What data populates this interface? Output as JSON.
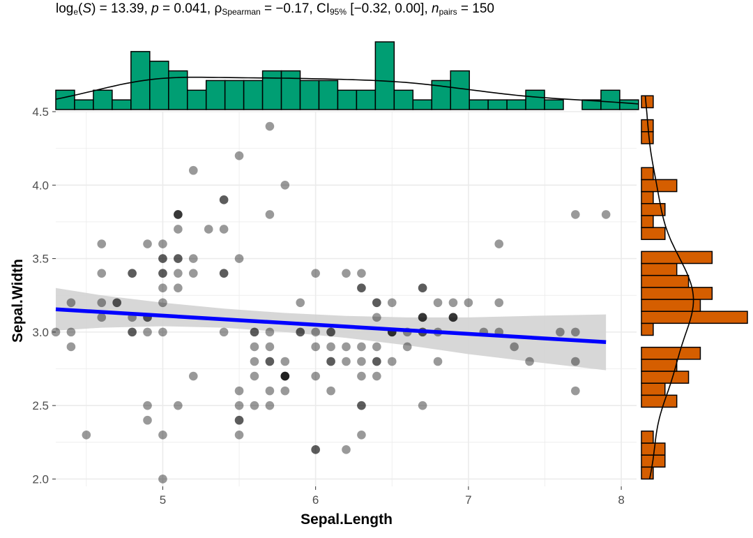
{
  "subtitle": {
    "log_prefix": "log",
    "log_sub": "e",
    "open": "(",
    "stat_symbol": "S",
    "close": ")",
    "stat_text": " = 13.39, ",
    "p_symbol": "p",
    "p_text": " = 0.041, ",
    "rho": "ρ",
    "rho_sub": "Spearman",
    "rho_text": " = −0.17, CI",
    "ci_sub": "95%",
    "ci_text": " [−0.32, 0.00], ",
    "n_symbol": "n",
    "n_sub": "pairs",
    "n_text": " = 150"
  },
  "colors": {
    "top_hist": "#009E73",
    "right_hist": "#D55E00",
    "regression": "#0000FF",
    "ci_band": "#D3D3D3",
    "points": "#000000",
    "grid": "#EBEBEB"
  },
  "chart_data": {
    "type": "scatter",
    "xlabel": "Sepal.Length",
    "ylabel": "Sepal.Width",
    "xlim": [
      4.3,
      8.1
    ],
    "ylim": [
      1.95,
      4.5
    ],
    "x_ticks": [
      5,
      6,
      7,
      8
    ],
    "y_ticks": [
      2.0,
      2.5,
      3.0,
      3.5,
      4.0,
      4.5
    ],
    "y_tick_labels": [
      "2.0",
      "2.5",
      "3.0",
      "3.5",
      "4.0",
      "4.5"
    ],
    "point_opacity": 0.4,
    "points": [
      [
        5.1,
        3.5
      ],
      [
        4.9,
        3.0
      ],
      [
        4.7,
        3.2
      ],
      [
        4.6,
        3.1
      ],
      [
        5.0,
        3.6
      ],
      [
        5.4,
        3.9
      ],
      [
        4.6,
        3.4
      ],
      [
        5.0,
        3.4
      ],
      [
        4.4,
        2.9
      ],
      [
        4.9,
        3.1
      ],
      [
        5.4,
        3.7
      ],
      [
        4.8,
        3.4
      ],
      [
        4.8,
        3.0
      ],
      [
        4.3,
        3.0
      ],
      [
        5.8,
        4.0
      ],
      [
        5.7,
        4.4
      ],
      [
        5.4,
        3.9
      ],
      [
        5.1,
        3.5
      ],
      [
        5.7,
        3.8
      ],
      [
        5.1,
        3.8
      ],
      [
        5.4,
        3.4
      ],
      [
        5.1,
        3.7
      ],
      [
        4.6,
        3.6
      ],
      [
        5.1,
        3.3
      ],
      [
        4.8,
        3.4
      ],
      [
        5.0,
        3.0
      ],
      [
        5.0,
        3.4
      ],
      [
        5.2,
        3.5
      ],
      [
        5.2,
        3.4
      ],
      [
        4.7,
        3.2
      ],
      [
        4.8,
        3.1
      ],
      [
        5.4,
        3.4
      ],
      [
        5.2,
        4.1
      ],
      [
        5.5,
        4.2
      ],
      [
        4.9,
        3.1
      ],
      [
        5.0,
        3.2
      ],
      [
        5.5,
        3.5
      ],
      [
        4.9,
        3.6
      ],
      [
        4.4,
        3.0
      ],
      [
        5.1,
        3.4
      ],
      [
        5.0,
        3.5
      ],
      [
        4.5,
        2.3
      ],
      [
        4.4,
        3.2
      ],
      [
        5.0,
        3.5
      ],
      [
        5.1,
        3.8
      ],
      [
        4.8,
        3.0
      ],
      [
        5.1,
        3.8
      ],
      [
        4.6,
        3.2
      ],
      [
        5.3,
        3.7
      ],
      [
        5.0,
        3.3
      ],
      [
        7.0,
        3.2
      ],
      [
        6.4,
        3.2
      ],
      [
        6.9,
        3.1
      ],
      [
        5.5,
        2.3
      ],
      [
        6.5,
        2.8
      ],
      [
        5.7,
        2.8
      ],
      [
        6.3,
        3.3
      ],
      [
        4.9,
        2.4
      ],
      [
        6.6,
        2.9
      ],
      [
        5.2,
        2.7
      ],
      [
        5.0,
        2.0
      ],
      [
        5.9,
        3.0
      ],
      [
        6.0,
        2.2
      ],
      [
        6.1,
        2.9
      ],
      [
        5.6,
        2.9
      ],
      [
        6.7,
        3.1
      ],
      [
        5.6,
        3.0
      ],
      [
        5.8,
        2.7
      ],
      [
        6.2,
        2.2
      ],
      [
        5.6,
        2.5
      ],
      [
        5.9,
        3.2
      ],
      [
        6.1,
        2.8
      ],
      [
        6.3,
        2.5
      ],
      [
        6.1,
        2.8
      ],
      [
        6.4,
        2.9
      ],
      [
        6.6,
        3.0
      ],
      [
        6.8,
        2.8
      ],
      [
        6.7,
        3.0
      ],
      [
        6.0,
        2.9
      ],
      [
        5.7,
        2.6
      ],
      [
        5.5,
        2.4
      ],
      [
        5.5,
        2.4
      ],
      [
        5.8,
        2.7
      ],
      [
        6.0,
        2.7
      ],
      [
        5.4,
        3.0
      ],
      [
        6.0,
        3.4
      ],
      [
        6.7,
        3.1
      ],
      [
        6.3,
        2.3
      ],
      [
        5.6,
        3.0
      ],
      [
        5.5,
        2.5
      ],
      [
        5.5,
        2.6
      ],
      [
        6.1,
        3.0
      ],
      [
        5.8,
        2.6
      ],
      [
        5.0,
        2.3
      ],
      [
        5.6,
        2.7
      ],
      [
        5.7,
        3.0
      ],
      [
        5.7,
        2.9
      ],
      [
        6.2,
        2.9
      ],
      [
        5.1,
        2.5
      ],
      [
        5.7,
        2.8
      ],
      [
        6.3,
        3.3
      ],
      [
        5.8,
        2.7
      ],
      [
        7.1,
        3.0
      ],
      [
        6.3,
        2.9
      ],
      [
        6.5,
        3.0
      ],
      [
        7.6,
        3.0
      ],
      [
        4.9,
        2.5
      ],
      [
        7.3,
        2.9
      ],
      [
        6.7,
        2.5
      ],
      [
        7.2,
        3.6
      ],
      [
        6.5,
        3.2
      ],
      [
        6.4,
        2.7
      ],
      [
        6.8,
        3.0
      ],
      [
        5.7,
        2.5
      ],
      [
        5.8,
        2.8
      ],
      [
        6.4,
        3.2
      ],
      [
        6.5,
        3.0
      ],
      [
        7.7,
        3.8
      ],
      [
        7.7,
        2.6
      ],
      [
        6.0,
        2.2
      ],
      [
        6.9,
        3.2
      ],
      [
        5.6,
        2.8
      ],
      [
        7.7,
        2.8
      ],
      [
        6.3,
        2.7
      ],
      [
        6.7,
        3.3
      ],
      [
        7.2,
        3.2
      ],
      [
        6.2,
        2.8
      ],
      [
        6.1,
        3.0
      ],
      [
        6.4,
        2.8
      ],
      [
        7.2,
        3.0
      ],
      [
        7.4,
        2.8
      ],
      [
        7.9,
        3.8
      ],
      [
        6.4,
        2.8
      ],
      [
        6.3,
        2.8
      ],
      [
        6.1,
        2.6
      ],
      [
        7.7,
        3.0
      ],
      [
        6.3,
        3.4
      ],
      [
        6.4,
        3.1
      ],
      [
        6.0,
        3.0
      ],
      [
        6.9,
        3.1
      ],
      [
        6.7,
        3.1
      ],
      [
        6.9,
        3.1
      ],
      [
        5.8,
        2.7
      ],
      [
        6.8,
        3.2
      ],
      [
        6.7,
        3.3
      ],
      [
        6.7,
        3.0
      ],
      [
        6.3,
        2.5
      ],
      [
        6.5,
        3.0
      ],
      [
        6.2,
        3.4
      ],
      [
        5.9,
        3.0
      ]
    ],
    "regression": {
      "x": [
        4.3,
        7.9
      ],
      "y": [
        3.155,
        2.932
      ]
    },
    "ci_band": {
      "x": [
        4.3,
        4.6,
        5.0,
        5.4,
        5.8,
        6.2,
        6.6,
        7.0,
        7.4,
        7.9
      ],
      "upper": [
        3.3,
        3.25,
        3.2,
        3.16,
        3.13,
        3.11,
        3.1,
        3.1,
        3.11,
        3.12
      ],
      "lower": [
        3.01,
        3.03,
        3.04,
        3.03,
        3.0,
        2.96,
        2.91,
        2.85,
        2.8,
        2.74
      ]
    },
    "x_histogram": {
      "bin_start": 4.3,
      "bin_width": 0.123,
      "counts": [
        2,
        1,
        2,
        1,
        6,
        5,
        4,
        2,
        3,
        3,
        3,
        4,
        4,
        3,
        3,
        2,
        2,
        7,
        2,
        1,
        3,
        4,
        1,
        1,
        1,
        2,
        1,
        0,
        1,
        2,
        1
      ]
    },
    "y_histogram": {
      "bin_start": 2.0,
      "bin_width": 0.0815,
      "counts": [
        1,
        2,
        2,
        1,
        0,
        0,
        3,
        2,
        4,
        3,
        5,
        0,
        1,
        9,
        5,
        6,
        4,
        3,
        6,
        0,
        2,
        1,
        2,
        1,
        3,
        1,
        0,
        0,
        1,
        1,
        0,
        1
      ]
    }
  }
}
